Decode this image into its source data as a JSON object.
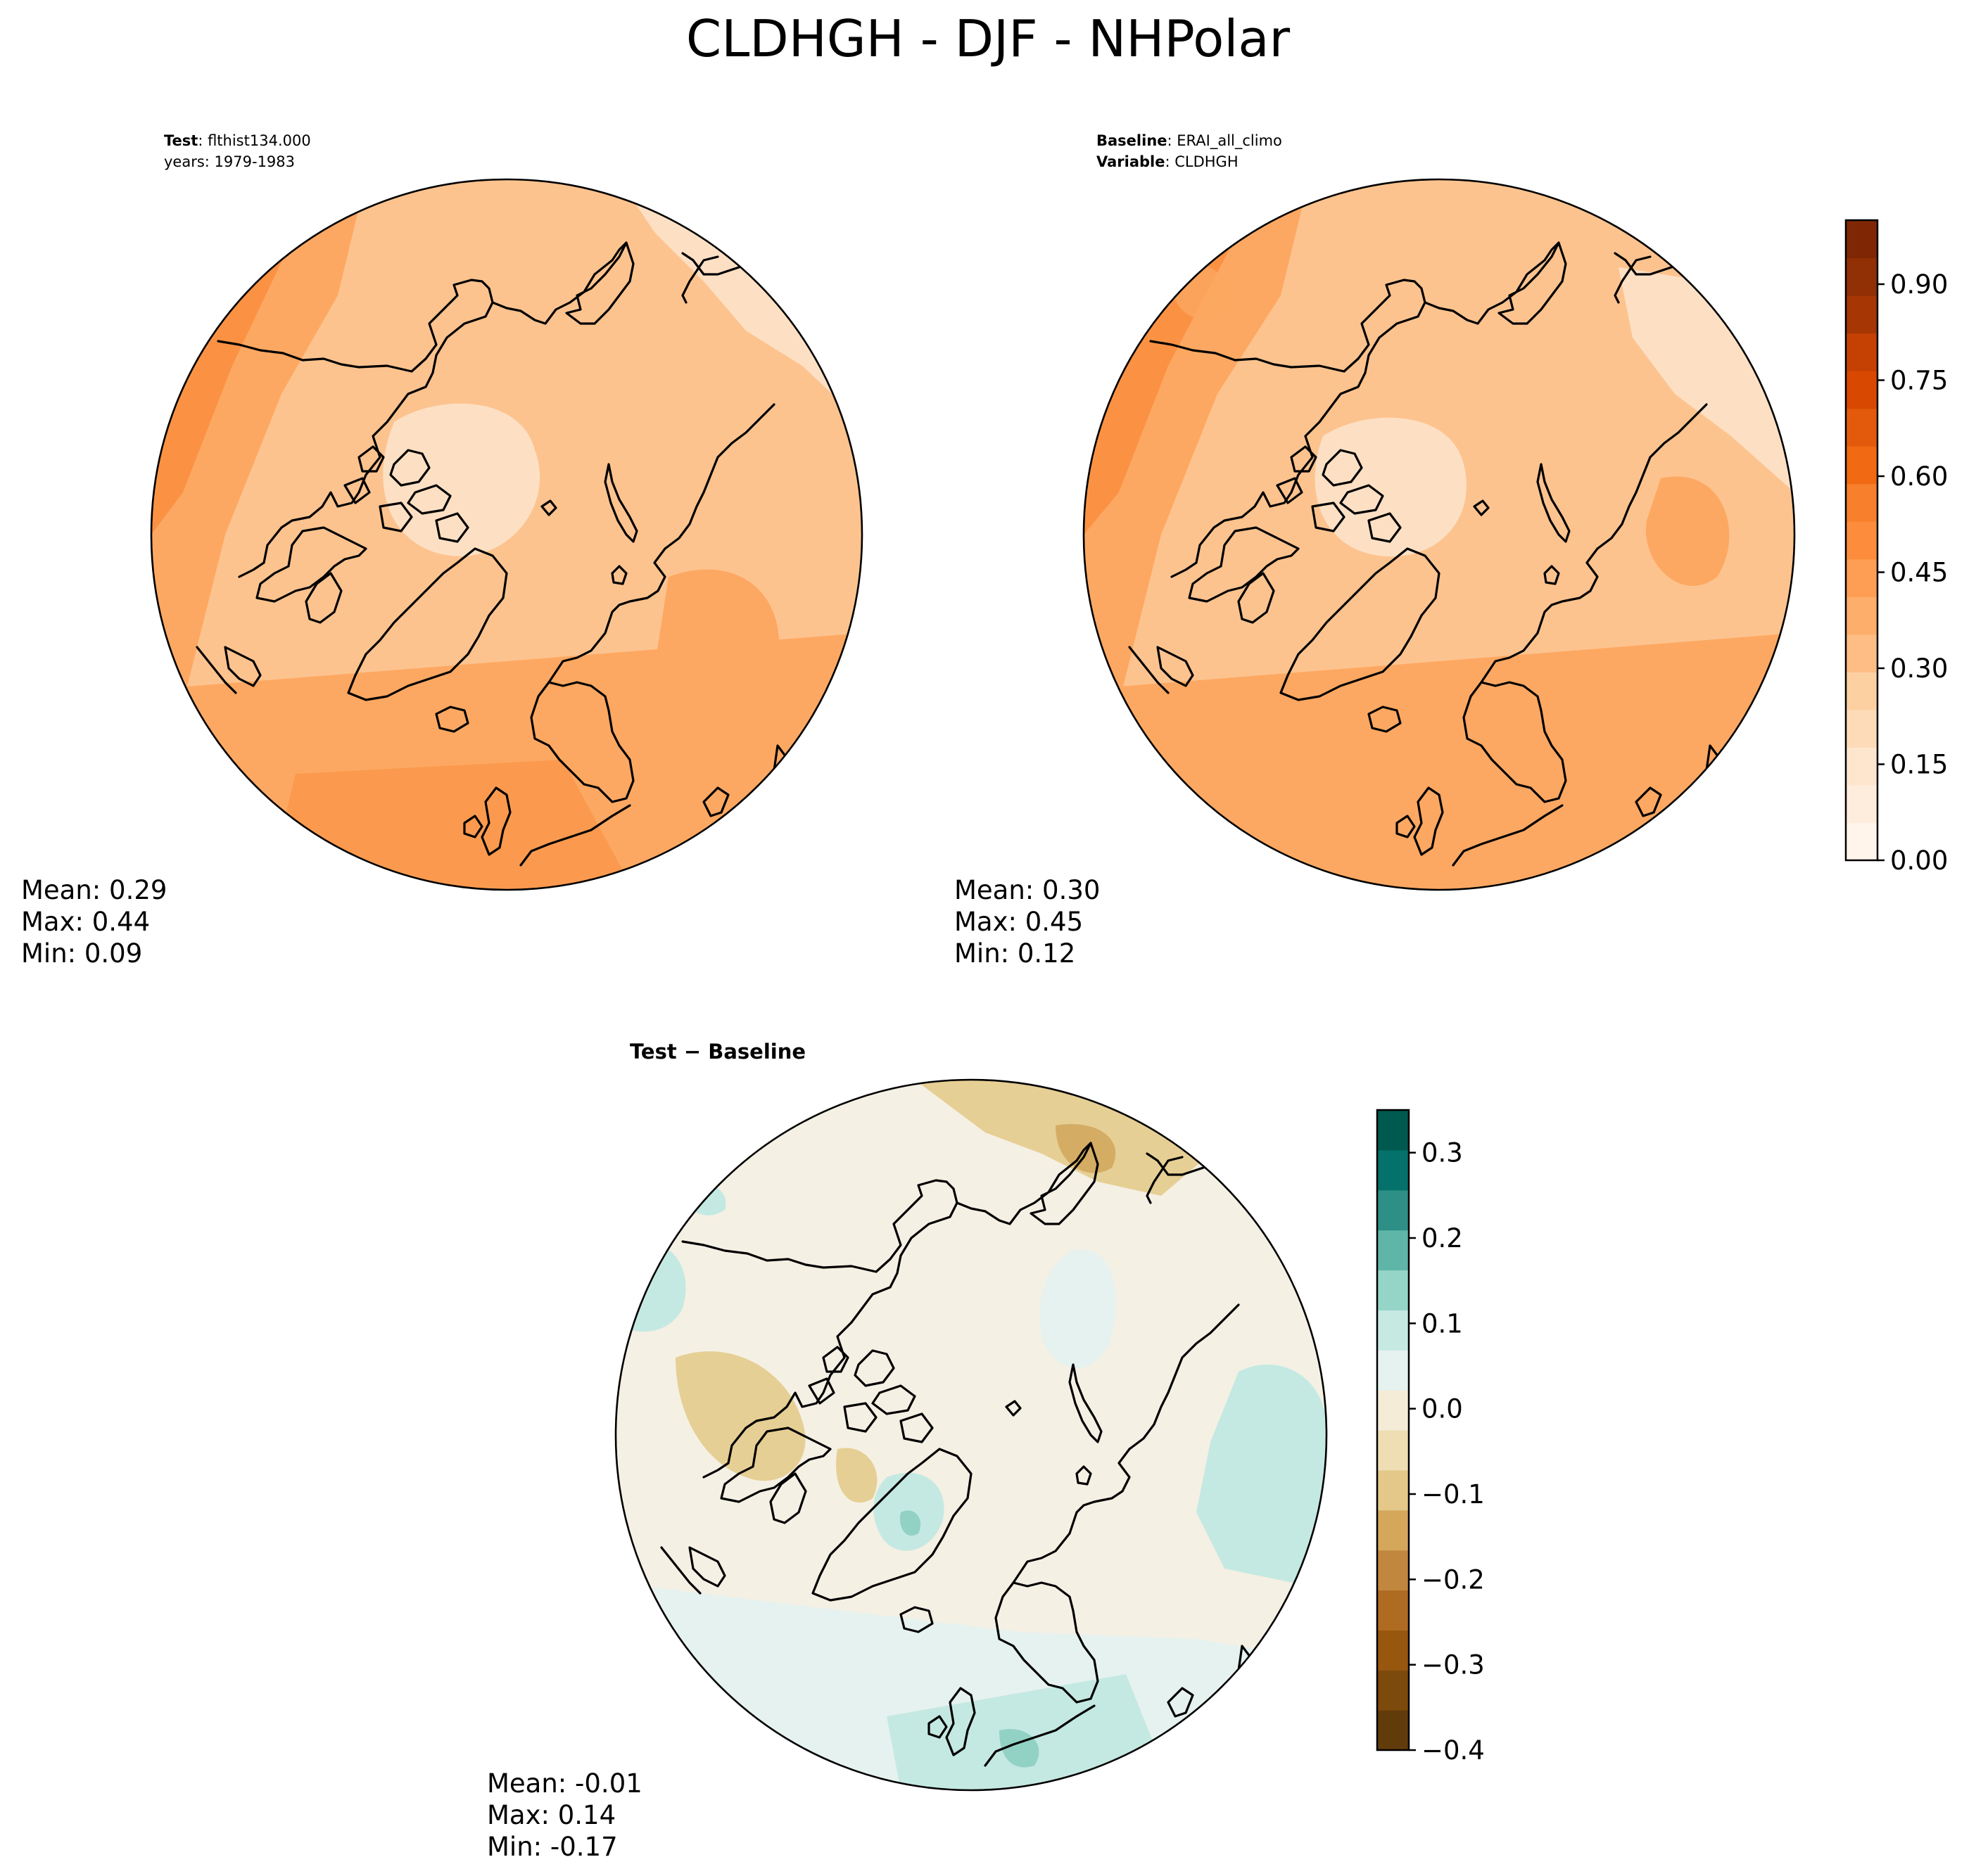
{
  "figure": {
    "title": "CLDHGH - DJF - NHPolar"
  },
  "panels": {
    "test": {
      "label_key": "Test",
      "label_value": ": flthist134.000",
      "years": "years: 1979-1983",
      "mean": "Mean:  0.29",
      "max": "Max:  0.44",
      "min": "Min:  0.09"
    },
    "baseline": {
      "label_key": "Baseline",
      "label_value": ": ERAI_all_climo",
      "variable_key": "Variable",
      "variable_value": ": CLDHGH",
      "mean": "Mean:  0.30",
      "max": "Max:  0.45",
      "min": "Min:  0.12"
    },
    "difference": {
      "title": "Test − Baseline",
      "mean": "Mean: -0.01",
      "max": "Max:  0.14",
      "min": "Min: -0.17"
    }
  },
  "colorbars": {
    "main": {
      "ticks": [
        "0.00",
        "0.15",
        "0.30",
        "0.45",
        "0.60",
        "0.75",
        "0.90"
      ],
      "tick_values": [
        0,
        0.15,
        0.3,
        0.45,
        0.6,
        0.75,
        0.9
      ],
      "range": [
        0,
        1
      ],
      "colors": [
        "#fff5eb",
        "#feeddc",
        "#fee6ce",
        "#fddbb8",
        "#fdd0a2",
        "#fdbd84",
        "#fdae6b",
        "#fd9e54",
        "#fd8d3c",
        "#f87f2c",
        "#f16913",
        "#e45a0c",
        "#d94801",
        "#c44103",
        "#a63603",
        "#903004",
        "#7f2704"
      ]
    },
    "diff": {
      "ticks": [
        "−0.4",
        "−0.3",
        "−0.2",
        "−0.1",
        "0.0",
        "0.1",
        "0.2",
        "0.3"
      ],
      "tick_values": [
        -0.4,
        -0.3,
        -0.2,
        -0.1,
        0.0,
        0.1,
        0.2,
        0.3
      ],
      "range": [
        -0.4,
        0.35
      ],
      "colors": [
        "#613b0a",
        "#7c4a0b",
        "#98570f",
        "#b06b22",
        "#c2873e",
        "#d4a75b",
        "#e3c889",
        "#efdeb3",
        "#f5ecd7",
        "#e6f2ef",
        "#c6e9e2",
        "#95d5c8",
        "#5fb6a8",
        "#2d8f85",
        "#04726a",
        "#00594f"
      ]
    }
  },
  "map_colors": {
    "test_light": "#fde0c4",
    "test_mid": "#fdc38f",
    "test_strong": "#fda862",
    "test_deep": "#fa8e3e",
    "diff_neutral": "#f5f0e4",
    "diff_brown": "#e6cf94",
    "diff_brown_deep": "#d4ac63",
    "diff_teal": "#c4e9e2",
    "diff_teal_mid": "#92d2c5"
  }
}
